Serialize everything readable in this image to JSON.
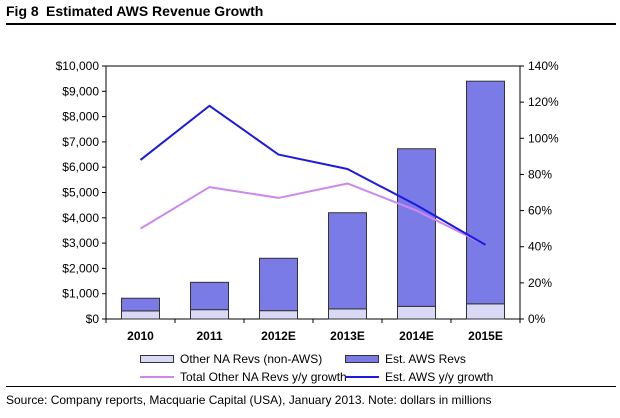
{
  "figure": {
    "number": "Fig 8",
    "title": "Estimated AWS Revenue Growth",
    "source": "Source: Company reports, Macquarie Capital (USA), January 2013.  Note: dollars in millions"
  },
  "chart_data": {
    "type": "bar",
    "categories": [
      "2010",
      "2011",
      "2012E",
      "2013E",
      "2014E",
      "2015E"
    ],
    "stacked": true,
    "y_left": {
      "ylim": [
        0,
        10000
      ],
      "ticks": [
        "$0",
        "$1,000",
        "$2,000",
        "$3,000",
        "$4,000",
        "$5,000",
        "$6,000",
        "$7,000",
        "$8,000",
        "$9,000",
        "$10,000"
      ]
    },
    "y_right": {
      "ylim": [
        0,
        140
      ],
      "ticks": [
        "0%",
        "20%",
        "40%",
        "60%",
        "80%",
        "100%",
        "120%",
        "140%"
      ]
    },
    "bar_series": [
      {
        "name": "Other NA Revs (non-AWS)",
        "values": [
          320,
          370,
          330,
          400,
          500,
          600
        ],
        "color": "#d9d9f5"
      },
      {
        "name": "Est. AWS Revs",
        "values": [
          500,
          1080,
          2070,
          3800,
          6230,
          8800
        ],
        "color": "#7b7be8"
      }
    ],
    "line_series": [
      {
        "name": "Total Other NA Revs y/y growth",
        "values": [
          50,
          73,
          67,
          75,
          60,
          41
        ],
        "color": "#cc88ee",
        "axis": "right"
      },
      {
        "name": "Est. AWS y/y growth",
        "values": [
          88,
          118,
          91,
          83,
          63,
          41
        ],
        "color": "#1a1ae0",
        "axis": "right"
      }
    ],
    "grid": false,
    "legend_position": "bottom"
  }
}
